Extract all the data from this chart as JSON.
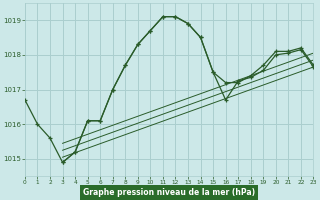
{
  "title": "Graphe pression niveau de la mer (hPa)",
  "bg_color": "#cce8e8",
  "grid_color": "#aacece",
  "line_color": "#2a5c2a",
  "x_min": 0,
  "x_max": 23,
  "y_min": 1014.5,
  "y_max": 1019.5,
  "y_ticks": [
    1015,
    1016,
    1017,
    1018,
    1019
  ],
  "x_ticks": [
    0,
    1,
    2,
    3,
    4,
    5,
    6,
    7,
    8,
    9,
    10,
    11,
    12,
    13,
    14,
    15,
    16,
    17,
    18,
    19,
    20,
    21,
    22,
    23
  ],
  "series1_x": [
    0,
    1,
    2,
    3,
    4,
    5,
    6,
    7,
    8,
    9,
    10,
    11,
    12,
    13,
    14,
    15,
    16,
    17,
    18,
    19,
    20,
    21,
    22,
    23
  ],
  "series1_y": [
    1016.7,
    1016.0,
    1015.6,
    1014.9,
    1015.2,
    1016.1,
    1016.1,
    1017.0,
    1017.7,
    1018.3,
    1018.7,
    1019.1,
    1019.1,
    1018.9,
    1018.5,
    1017.5,
    1017.2,
    1017.2,
    1017.4,
    1017.7,
    1018.1,
    1018.1,
    1018.2,
    1017.7
  ],
  "series2_x": [
    3,
    4,
    5,
    6,
    7,
    8,
    9,
    10,
    11,
    12,
    13,
    14,
    15,
    16,
    17,
    18,
    19,
    20,
    21,
    22,
    23
  ],
  "series2_y": [
    1014.9,
    1015.2,
    1016.1,
    1016.1,
    1017.0,
    1017.7,
    1018.3,
    1018.7,
    1019.1,
    1019.1,
    1018.9,
    1018.5,
    1017.5,
    1016.7,
    1017.25,
    1017.35,
    1017.55,
    1018.0,
    1018.05,
    1018.15,
    1017.65
  ],
  "trend1_x": [
    3,
    23
  ],
  "trend1_y": [
    1015.05,
    1017.65
  ],
  "trend2_x": [
    3,
    23
  ],
  "trend2_y": [
    1015.25,
    1017.85
  ],
  "trend3_x": [
    3,
    23
  ],
  "trend3_y": [
    1015.45,
    1018.05
  ],
  "title_bg": "#2a6c2a",
  "title_fg": "#ffffff"
}
